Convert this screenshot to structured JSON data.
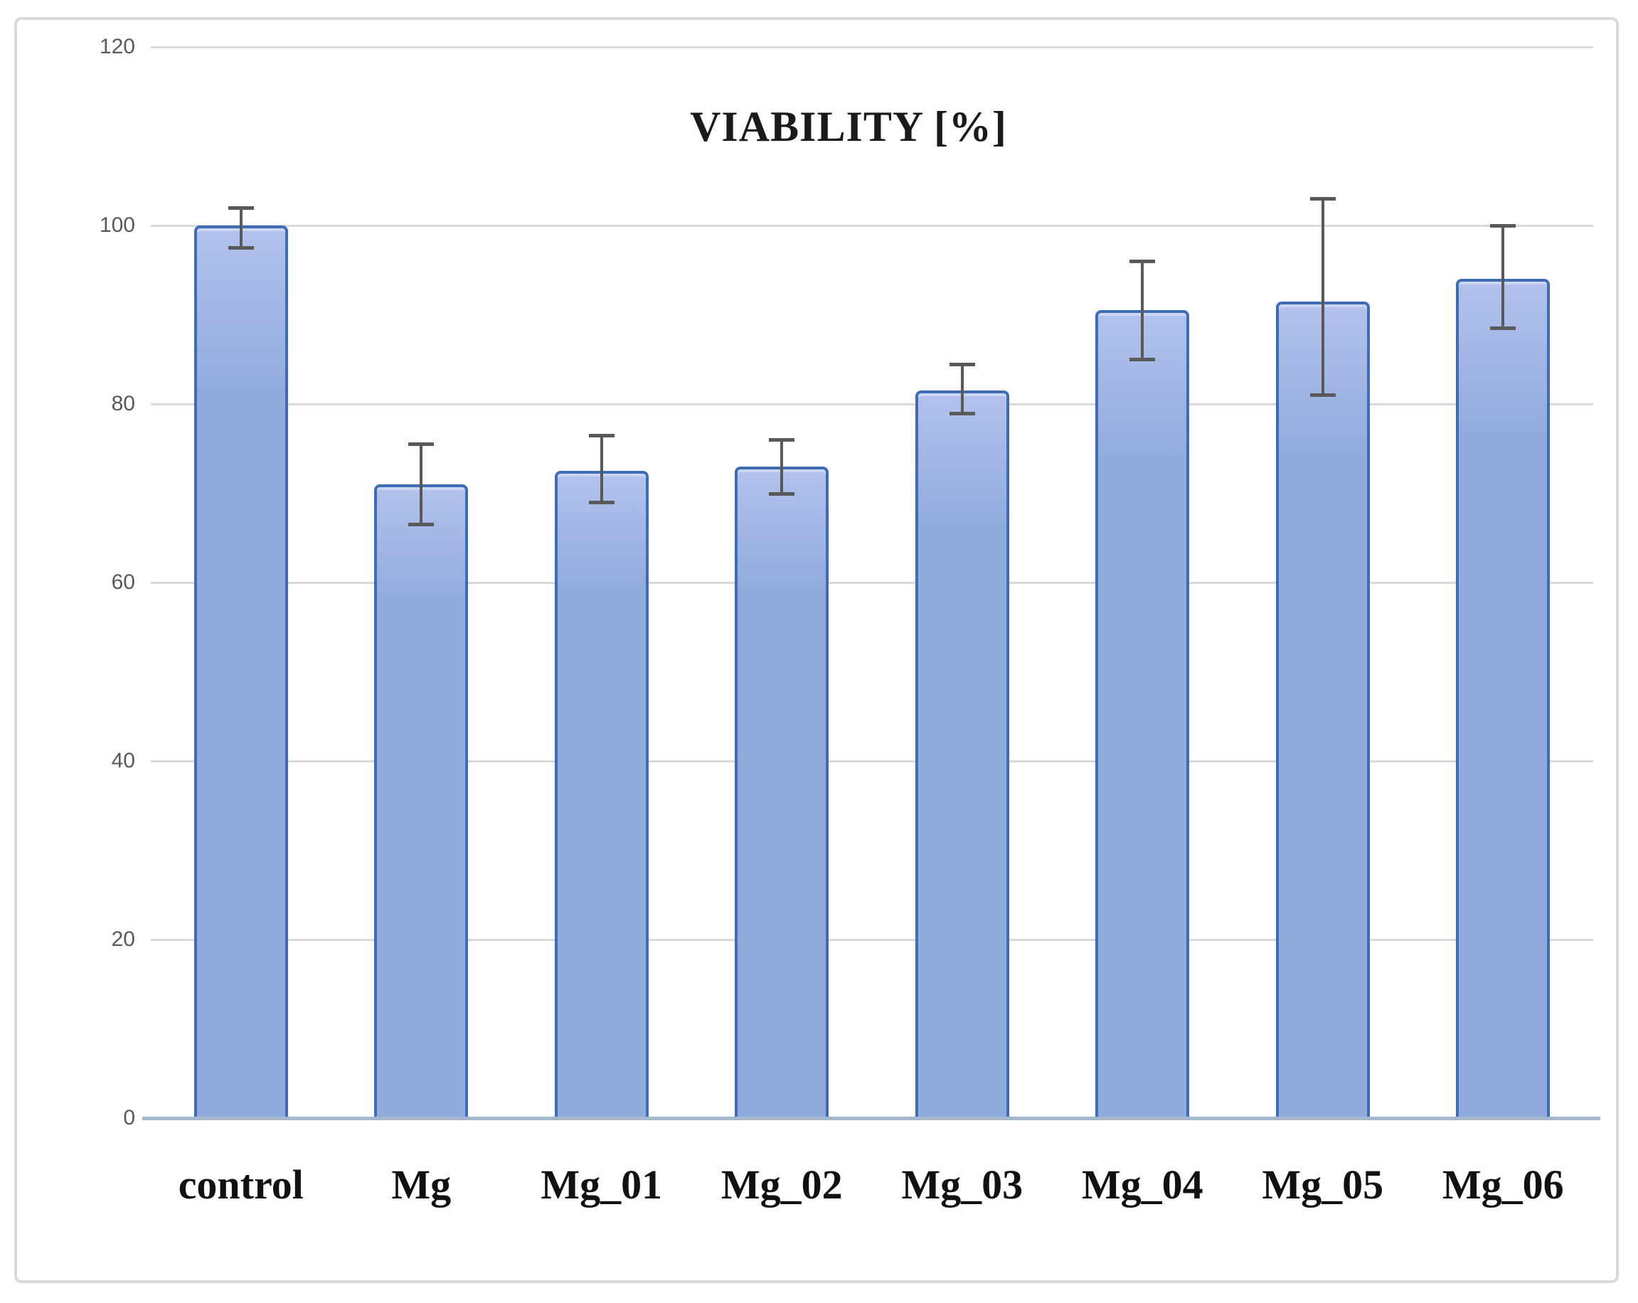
{
  "chart_data": {
    "type": "bar",
    "title": "VIABILITY [%]",
    "categories": [
      "control",
      "Mg",
      "Mg_01",
      "Mg_02",
      "Mg_03",
      "Mg_04",
      "Mg_05",
      "Mg_06"
    ],
    "values": [
      100,
      71,
      72.5,
      73,
      81.5,
      90.5,
      91.5,
      94
    ],
    "error_low": [
      97.5,
      66.5,
      69,
      70,
      79,
      85,
      81,
      88.5
    ],
    "error_high": [
      102,
      75.5,
      76.5,
      76,
      84.5,
      96,
      103,
      100
    ],
    "ylim": [
      0,
      120
    ],
    "yticks": [
      0,
      20,
      40,
      60,
      80,
      100,
      120
    ],
    "xlabel": "",
    "ylabel": "",
    "grid": true,
    "legend": "none",
    "colors": {
      "bar_fill": "#92abdf",
      "bar_fill_light": "#b2c2ec",
      "bar_border": "#3f6db5",
      "error_bar": "#595959",
      "gridline": "#d9d9d9",
      "baseline": "#a3b8cc",
      "tick_label": "#595959",
      "frame_border": "#d9d9d9",
      "title_text": "#1a1a1a"
    }
  }
}
